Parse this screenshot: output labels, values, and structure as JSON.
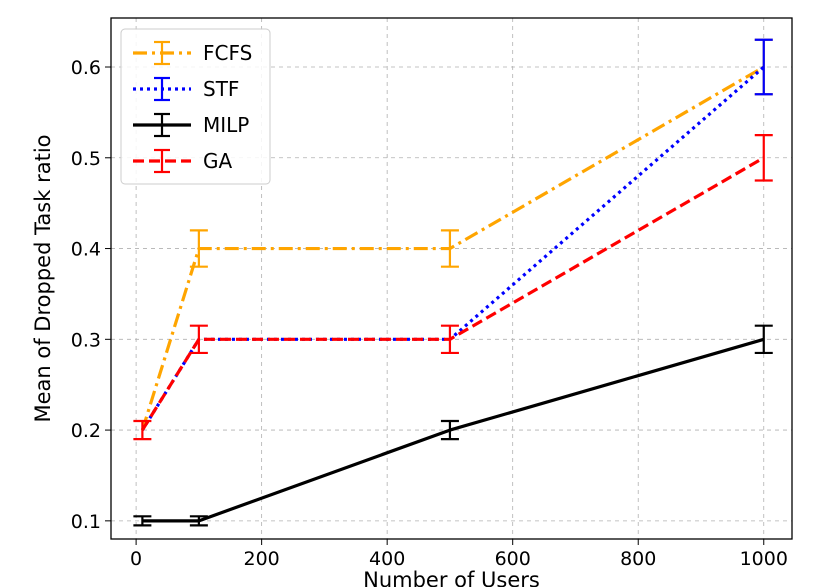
{
  "chart_data": {
    "type": "line",
    "title": "",
    "xlabel": "Number of Users",
    "ylabel": "Mean of Dropped Task ratio",
    "xlim": [
      -40,
      1045
    ],
    "ylim": [
      0.08,
      0.654
    ],
    "xticks": [
      0,
      200,
      400,
      600,
      800,
      1000
    ],
    "yticks": [
      0.1,
      0.2,
      0.3,
      0.4,
      0.5,
      0.6
    ],
    "grid": true,
    "legend_position": "top-left",
    "series": [
      {
        "name": "FCFS",
        "color": "#FFA500",
        "dash": "dashdot",
        "x": [
          10,
          100,
          500,
          1000
        ],
        "y": [
          0.2,
          0.4,
          0.4,
          0.6
        ],
        "err": [
          0.0,
          0.02,
          0.02,
          0.03
        ]
      },
      {
        "name": "STF",
        "color": "#0000FF",
        "dash": "dotted",
        "x": [
          10,
          100,
          500,
          1000
        ],
        "y": [
          0.2,
          0.3,
          0.3,
          0.6
        ],
        "err": [
          0.0,
          0.0,
          0.0,
          0.03
        ]
      },
      {
        "name": "MILP",
        "color": "#000000",
        "dash": "solid",
        "x": [
          10,
          100,
          500,
          1000
        ],
        "y": [
          0.1,
          0.1,
          0.2,
          0.3
        ],
        "err": [
          0.005,
          0.005,
          0.01,
          0.015
        ]
      },
      {
        "name": "GA",
        "color": "#FF0000",
        "dash": "dashed",
        "x": [
          10,
          100,
          500,
          1000
        ],
        "y": [
          0.2,
          0.3,
          0.3,
          0.5
        ],
        "err": [
          0.01,
          0.015,
          0.015,
          0.025
        ]
      }
    ]
  }
}
